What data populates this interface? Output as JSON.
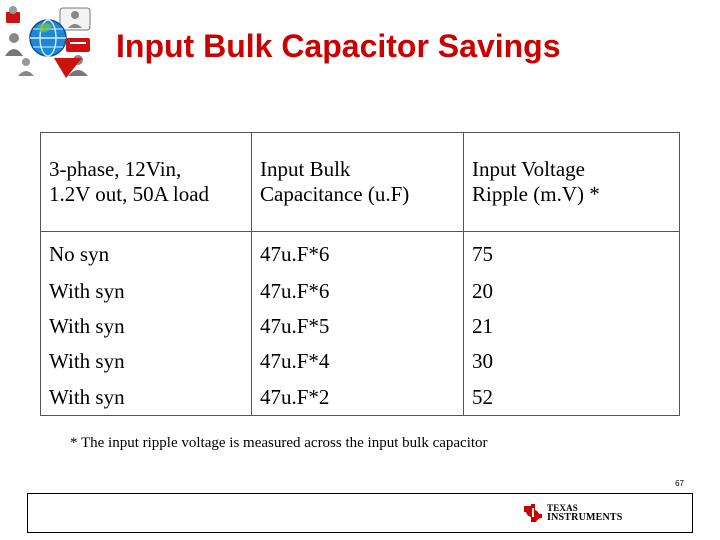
{
  "slide": {
    "title": "Input Bulk Capacitor Savings",
    "page_number": "67"
  },
  "table": {
    "header": [
      {
        "line1": "3-phase, 12Vin,",
        "line2": "1.2V out, 50A load"
      },
      {
        "line1": "Input Bulk",
        "line2": "Capacitance (u.F)"
      },
      {
        "line1": "Input Voltage",
        "line2": "Ripple (m.V) *"
      }
    ],
    "rows": [
      [
        "No syn",
        "47u.F*6",
        "75"
      ],
      [
        "With syn",
        "47u.F*6",
        "20"
      ],
      [
        "With syn",
        "47u.F*5",
        "21"
      ],
      [
        "With syn",
        "47u.F*4",
        "30"
      ],
      [
        "With syn",
        "47u.F*2",
        "52"
      ]
    ]
  },
  "footnote": "* The input ripple voltage is measured across the input bulk capacitor",
  "footer": {
    "brand_line1": "TEXAS",
    "brand_line2": "INSTRUMENTS",
    "brand_color": "#cc0000"
  },
  "colors": {
    "title": "#cc0000",
    "globe": "#1e88d8",
    "accent_red": "#cc1111"
  },
  "icons": [
    "people-globe-logo-icon",
    "ti-bug-icon"
  ]
}
